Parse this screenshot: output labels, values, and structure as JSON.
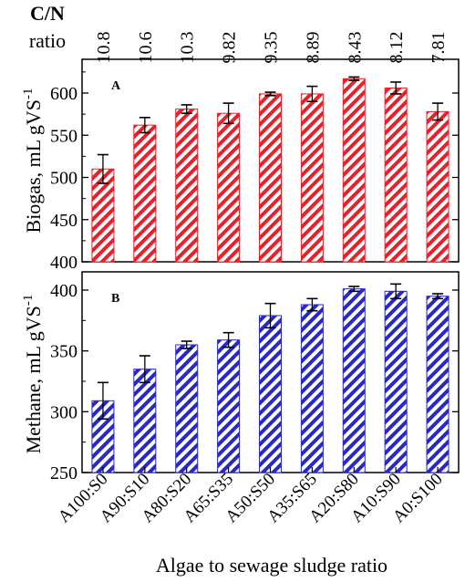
{
  "header": {
    "cn_title_line1": "C/N",
    "cn_title_line2": "ratio",
    "cn_values": [
      "10.8",
      "10.6",
      "10.3",
      "9.82",
      "9.35",
      "8.89",
      "8.43",
      "8.12",
      "7.81"
    ]
  },
  "chart_data": [
    {
      "type": "bar",
      "panel_label": "A",
      "categories": [
        "A100:S0",
        "A90:S10",
        "A80:S20",
        "A65:S35",
        "A50:S50",
        "A35:S65",
        "A20:S80",
        "A10:S90",
        "A0:S100"
      ],
      "values": [
        510,
        562,
        581,
        576,
        599,
        599,
        617,
        606,
        578
      ],
      "errors": [
        17,
        9,
        5,
        12,
        2,
        9,
        2,
        7,
        10
      ],
      "ylabel": "Biogas, mL gVS",
      "ylabel_superscript": "-1",
      "ylim": [
        400,
        640
      ],
      "yticks": [
        400,
        450,
        500,
        550,
        600
      ],
      "ytick_labels": [
        "400",
        "450",
        "500",
        "550",
        "600"
      ],
      "bar_color": "#e8202a",
      "pattern": "diagonal-stripes",
      "grid": false
    },
    {
      "type": "bar",
      "panel_label": "B",
      "categories": [
        "A100:S0",
        "A90:S10",
        "A80:S20",
        "A65:S35",
        "A50:S50",
        "A35:S65",
        "A20:S80",
        "A10:S90",
        "A0:S100"
      ],
      "values": [
        309,
        335,
        355,
        359,
        379,
        388,
        401,
        399,
        395
      ],
      "errors": [
        15,
        11,
        3,
        6,
        10,
        5,
        2,
        6,
        2
      ],
      "ylabel": "Methane, mL gVS",
      "ylabel_superscript": "-1",
      "ylim": [
        250,
        415
      ],
      "yticks": [
        250,
        300,
        350,
        400
      ],
      "ytick_labels": [
        "250",
        "300",
        "350",
        "400"
      ],
      "bar_color": "#2828c8",
      "pattern": "diagonal-stripes",
      "grid": false
    }
  ],
  "xaxis": {
    "label": "Algae to sewage sludge ratio"
  }
}
